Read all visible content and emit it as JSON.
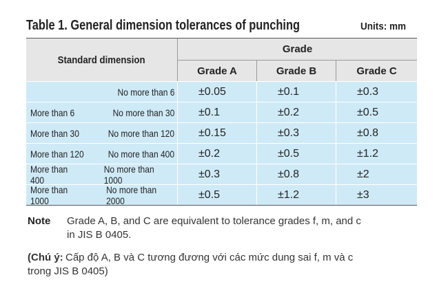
{
  "header": {
    "title": "Table 1. General dimension tolerances of punching",
    "units": "Units: mm"
  },
  "table": {
    "columns": {
      "dimension": "Standard dimension",
      "group": "Grade",
      "grades": [
        "Grade A",
        "Grade B",
        "Grade C"
      ]
    },
    "rows": [
      {
        "to": "No more than 6",
        "values": [
          "±0.05",
          "±0.1",
          "±0.3"
        ]
      },
      {
        "from": "More than 6",
        "to": "No more than 30",
        "values": [
          "±0.1",
          "±0.2",
          "±0.5"
        ]
      },
      {
        "from": "More than 30",
        "to": "No more than 120",
        "values": [
          "±0.15",
          "±0.3",
          "±0.8"
        ]
      },
      {
        "from": "More than 120",
        "to": "No more than 400",
        "values": [
          "±0.2",
          "±0.5",
          "±1.2"
        ]
      },
      {
        "from": "More than 400",
        "to": "No more than 1000",
        "values": [
          "±0.3",
          "±0.8",
          "±2"
        ]
      },
      {
        "from": "More than 1000",
        "to": "No more than 2000",
        "values": [
          "±0.5",
          "±1.2",
          "±3"
        ]
      }
    ]
  },
  "note": {
    "label": "Note",
    "lines": [
      "Grade A, B, and C are equivalent to tolerance grades f, m, and c",
      "in JIS B 0405."
    ]
  },
  "vn_note": {
    "label": "(Chú ý:",
    "lines": [
      "Cấp độ A, B và C tương đương với các mức dung sai f, m và c",
      "trong JIS B 0405)"
    ]
  }
}
